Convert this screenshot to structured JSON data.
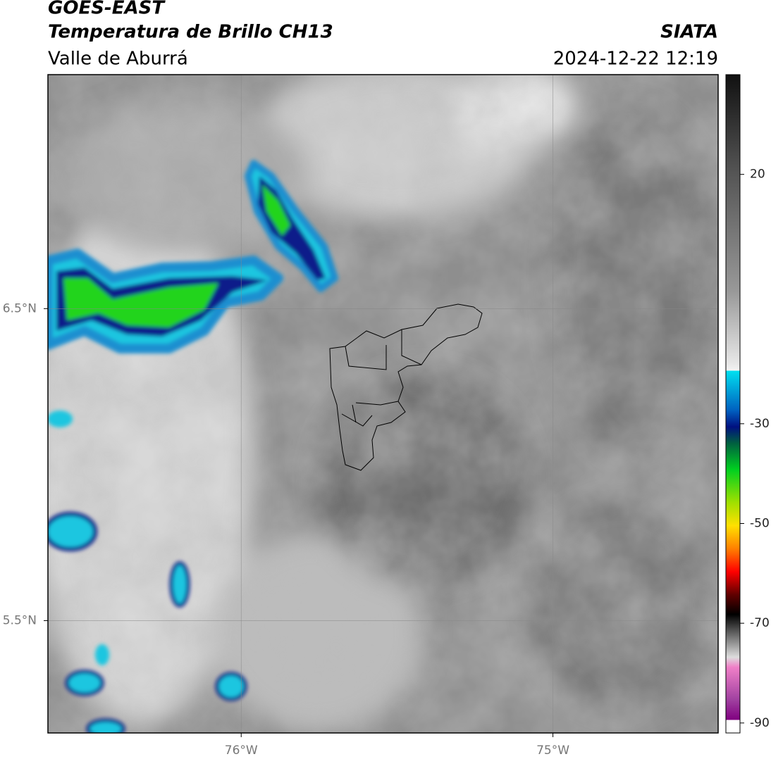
{
  "header": {
    "title": "GOES-EAST",
    "subtitle": "Temperatura de Brillo CH13",
    "region": "Valle de Aburrá",
    "source": "SIATA",
    "datetime": "2024-12-22 12:19"
  },
  "map": {
    "xlim": [
      -76.62,
      -74.47
    ],
    "ylim": [
      5.14,
      7.25
    ],
    "xticks": [
      {
        "value": -76,
        "label": "76°W"
      },
      {
        "value": -75,
        "label": "75°W"
      }
    ],
    "yticks": [
      {
        "value": 6.5,
        "label": "6.5°N"
      },
      {
        "value": 5.5,
        "label": "5.5°N"
      }
    ],
    "grid": true
  },
  "colorbar": {
    "range": [
      -92,
      40
    ],
    "ticks": [
      20,
      -30,
      -50,
      -70,
      -90
    ]
  }
}
